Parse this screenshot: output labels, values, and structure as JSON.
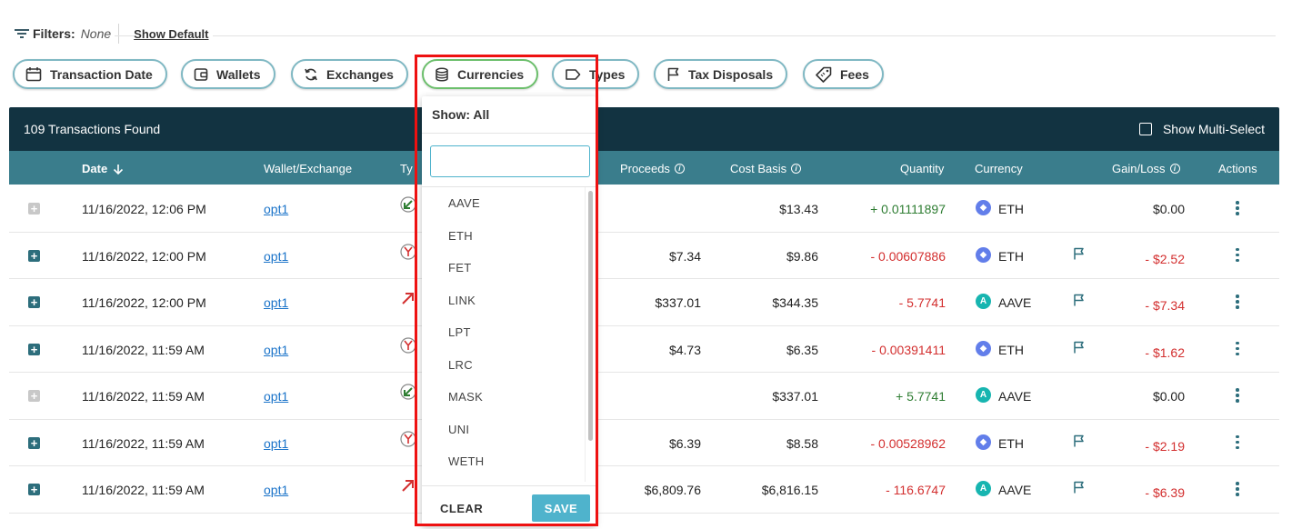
{
  "filters": {
    "label": "Filters:",
    "value": "None",
    "show_default": "Show Default"
  },
  "chips": [
    {
      "label": "Transaction Date",
      "icon": "calendar-icon"
    },
    {
      "label": "Wallets",
      "icon": "wallet-icon"
    },
    {
      "label": "Exchanges",
      "icon": "sync-icon"
    },
    {
      "label": "Currencies",
      "icon": "coins-icon",
      "active": true
    },
    {
      "label": "Types",
      "icon": "tag-icon"
    },
    {
      "label": "Tax Disposals",
      "icon": "flag-icon"
    },
    {
      "label": "Fees",
      "icon": "price-tag-icon"
    }
  ],
  "table": {
    "count_text": "109 Transactions Found",
    "multi_select_label": "Show Multi-Select",
    "columns": {
      "date": "Date",
      "wallet": "Wallet/Exchange",
      "type": "Ty",
      "proceeds": "Proceeds",
      "cost_basis": "Cost Basis",
      "quantity": "Quantity",
      "currency": "Currency",
      "gain_loss": "Gain/Loss",
      "actions": "Actions"
    },
    "rows": [
      {
        "expandable": false,
        "date": "11/16/2022, 12:06 PM",
        "wallet": "opt1",
        "type": "receive",
        "proceeds": "",
        "cost_basis": "$13.43",
        "quantity": "+ 0.01111897",
        "qty_sign": "pos",
        "currency": "ETH",
        "flag": false,
        "gain_loss": "$0.00",
        "gl_sign": "zero"
      },
      {
        "expandable": true,
        "date": "11/16/2022, 12:00 PM",
        "wallet": "opt1",
        "type": "fee",
        "proceeds": "$7.34",
        "cost_basis": "$9.86",
        "quantity": "- 0.00607886",
        "qty_sign": "neg",
        "currency": "ETH",
        "flag": true,
        "gain_loss": "- $2.52",
        "gl_sign": "neg"
      },
      {
        "expandable": true,
        "date": "11/16/2022, 12:00 PM",
        "wallet": "opt1",
        "type": "send",
        "proceeds": "$337.01",
        "cost_basis": "$344.35",
        "quantity": "- 5.7741",
        "qty_sign": "neg",
        "currency": "AAVE",
        "flag": true,
        "gain_loss": "- $7.34",
        "gl_sign": "neg"
      },
      {
        "expandable": true,
        "date": "11/16/2022, 11:59 AM",
        "wallet": "opt1",
        "type": "fee",
        "proceeds": "$4.73",
        "cost_basis": "$6.35",
        "quantity": "- 0.00391411",
        "qty_sign": "neg",
        "currency": "ETH",
        "flag": true,
        "gain_loss": "- $1.62",
        "gl_sign": "neg"
      },
      {
        "expandable": false,
        "date": "11/16/2022, 11:59 AM",
        "wallet": "opt1",
        "type": "receive",
        "proceeds": "",
        "cost_basis": "$337.01",
        "quantity": "+ 5.7741",
        "qty_sign": "pos",
        "currency": "AAVE",
        "flag": false,
        "gain_loss": "$0.00",
        "gl_sign": "zero"
      },
      {
        "expandable": true,
        "date": "11/16/2022, 11:59 AM",
        "wallet": "opt1",
        "type": "fee",
        "proceeds": "$6.39",
        "cost_basis": "$8.58",
        "quantity": "- 0.00528962",
        "qty_sign": "neg",
        "currency": "ETH",
        "flag": true,
        "gain_loss": "- $2.19",
        "gl_sign": "neg"
      },
      {
        "expandable": true,
        "date": "11/16/2022, 11:59 AM",
        "wallet": "opt1",
        "type": "send",
        "proceeds": "$6,809.76",
        "cost_basis": "$6,816.15",
        "quantity": "- 116.6747",
        "qty_sign": "neg",
        "currency": "AAVE",
        "flag": true,
        "gain_loss": "- $6.39",
        "gl_sign": "neg"
      }
    ]
  },
  "dropdown": {
    "show_all": "Show: All",
    "search_value": "",
    "items": [
      "AAVE",
      "ETH",
      "FET",
      "LINK",
      "LPT",
      "LRC",
      "MASK",
      "UNI",
      "WETH"
    ],
    "clear_label": "CLEAR",
    "save_label": "SAVE"
  },
  "colors": {
    "header_dark": "#123341",
    "header_teal": "#3a7d8c",
    "accent": "#4fb3cc",
    "positive": "#2e7d32",
    "negative": "#d32f2f",
    "highlight": "#ee1111"
  }
}
